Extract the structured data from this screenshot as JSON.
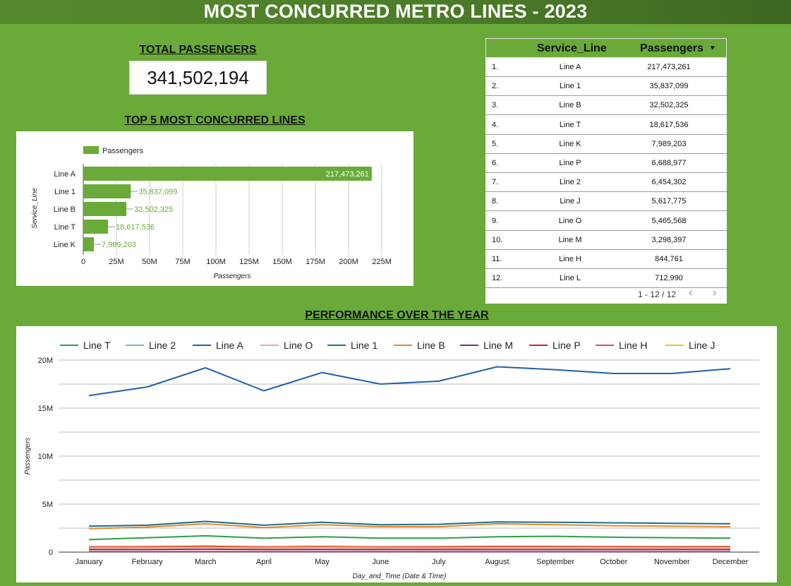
{
  "header": {
    "title": "MOST CONCURRED METRO LINES - 2023"
  },
  "kpi": {
    "label": "TOTAL PASSENGERS",
    "value": "341,502,194"
  },
  "top5": {
    "title": "TOP 5 MOST CONCURRED LINES"
  },
  "table": {
    "columns": [
      "Service_Line",
      "Passengers"
    ],
    "sort_indicator": "▼",
    "rows": [
      {
        "idx": "1.",
        "line": "Line A",
        "passengers": "217,473,261"
      },
      {
        "idx": "2.",
        "line": "Line 1",
        "passengers": "35,837,099"
      },
      {
        "idx": "3.",
        "line": "Line B",
        "passengers": "32,502,325"
      },
      {
        "idx": "4.",
        "line": "Line T",
        "passengers": "18,617,536"
      },
      {
        "idx": "5.",
        "line": "Line K",
        "passengers": "7,989,203"
      },
      {
        "idx": "6.",
        "line": "Line P",
        "passengers": "6,688,977"
      },
      {
        "idx": "7.",
        "line": "Line 2",
        "passengers": "6,454,302"
      },
      {
        "idx": "8.",
        "line": "Line J",
        "passengers": "5,617,775"
      },
      {
        "idx": "9.",
        "line": "Line O",
        "passengers": "5,465,568"
      },
      {
        "idx": "10.",
        "line": "Line M",
        "passengers": "3,298,397"
      },
      {
        "idx": "11.",
        "line": "Line H",
        "passengers": "844,761"
      },
      {
        "idx": "12.",
        "line": "Line L",
        "passengers": "712,990"
      }
    ],
    "pagination": "1 - 12 / 12",
    "prev_icon": "chevron-left-icon",
    "next_icon": "chevron-right-icon"
  },
  "performance": {
    "title": "PERFORMANCE OVER THE YEAR"
  },
  "chart_data": [
    {
      "type": "bar",
      "orientation": "horizontal",
      "categories": [
        "Line A",
        "Line 1",
        "Line B",
        "Line T",
        "Line K"
      ],
      "series": [
        {
          "name": "Passengers",
          "values": [
            217473261,
            35837099,
            32502325,
            18617536,
            7989203
          ]
        }
      ],
      "data_labels": [
        "217,473,261",
        "35,837,099",
        "32,502,325",
        "18,617,536",
        "7,989,203"
      ],
      "xlabel": "Passengers",
      "ylabel": "Service_Line",
      "xlim": [
        0,
        225000000
      ],
      "xticks": [
        0,
        25000000,
        50000000,
        75000000,
        100000000,
        125000000,
        150000000,
        175000000,
        200000000,
        225000000
      ],
      "xtick_labels": [
        "0",
        "25M",
        "50M",
        "75M",
        "100M",
        "125M",
        "150M",
        "175M",
        "200M",
        "225M"
      ],
      "legend": "top-left",
      "grid": true,
      "color": "#6aaa38"
    },
    {
      "type": "line",
      "categories": [
        "January",
        "February",
        "March",
        "April",
        "May",
        "June",
        "July",
        "August",
        "September",
        "October",
        "November",
        "December"
      ],
      "xlabel": "Day_and_Time (Date & Time)",
      "ylabel": "Passengers",
      "ylim": [
        0,
        20000000
      ],
      "yticks": [
        0,
        5000000,
        10000000,
        15000000,
        20000000
      ],
      "ytick_labels": [
        "0",
        "5M",
        "10M",
        "15M",
        "20M"
      ],
      "legend": "top",
      "grid": true,
      "series": [
        {
          "name": "Line T",
          "color": "#2e9e44",
          "values": [
            1300000,
            1500000,
            1700000,
            1450000,
            1600000,
            1450000,
            1450000,
            1600000,
            1650000,
            1550000,
            1500000,
            1450000
          ]
        },
        {
          "name": "Line 2",
          "color": "#79b4d6",
          "values": [
            550000,
            550000,
            600000,
            540000,
            580000,
            540000,
            540000,
            570000,
            570000,
            550000,
            540000,
            560000
          ]
        },
        {
          "name": "Line A",
          "color": "#1f5fa8",
          "values": [
            16300000,
            17200000,
            19200000,
            16800000,
            18700000,
            17500000,
            17800000,
            19300000,
            19000000,
            18600000,
            18600000,
            19100000
          ]
        },
        {
          "name": "Line O",
          "color": "#f4a6b5",
          "values": [
            460000,
            470000,
            490000,
            450000,
            480000,
            450000,
            450000,
            470000,
            470000,
            460000,
            450000,
            460000
          ]
        },
        {
          "name": "Line 1",
          "color": "#1a6f86",
          "values": [
            2700000,
            2800000,
            3200000,
            2800000,
            3100000,
            2850000,
            2900000,
            3150000,
            3100000,
            3050000,
            3000000,
            2950000
          ]
        },
        {
          "name": "Line B",
          "color": "#e8852a",
          "values": [
            2450000,
            2600000,
            2950000,
            2550000,
            2850000,
            2650000,
            2650000,
            2950000,
            2850000,
            2750000,
            2700000,
            2650000
          ]
        },
        {
          "name": "Line M",
          "color": "#7a2a96",
          "values": [
            270000,
            280000,
            300000,
            270000,
            290000,
            270000,
            270000,
            280000,
            280000,
            270000,
            270000,
            270000
          ]
        },
        {
          "name": "Line P",
          "color": "#d0202e",
          "values": [
            540000,
            560000,
            600000,
            540000,
            580000,
            540000,
            550000,
            580000,
            570000,
            560000,
            550000,
            560000
          ]
        },
        {
          "name": "Line H",
          "color": "#e0458f",
          "values": [
            70000,
            70000,
            75000,
            70000,
            72000,
            70000,
            70000,
            72000,
            72000,
            70000,
            70000,
            70000
          ]
        },
        {
          "name": "Line J",
          "color": "#f2c21a",
          "values": [
            460000,
            470000,
            500000,
            460000,
            490000,
            460000,
            460000,
            480000,
            480000,
            470000,
            460000,
            470000
          ]
        }
      ]
    }
  ]
}
